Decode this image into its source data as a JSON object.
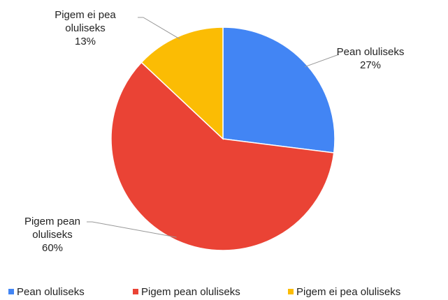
{
  "chart_data": {
    "type": "pie",
    "categories": [
      "Pean oluliseks",
      "Pigem pean oluliseks",
      "Pigem ei pea oluliseks"
    ],
    "values": [
      27,
      60,
      13
    ],
    "value_labels": [
      "27%",
      "60%",
      "13%"
    ],
    "colors": [
      "#4285f4",
      "#ea4335",
      "#fbbc04"
    ],
    "legend": "bottom"
  }
}
